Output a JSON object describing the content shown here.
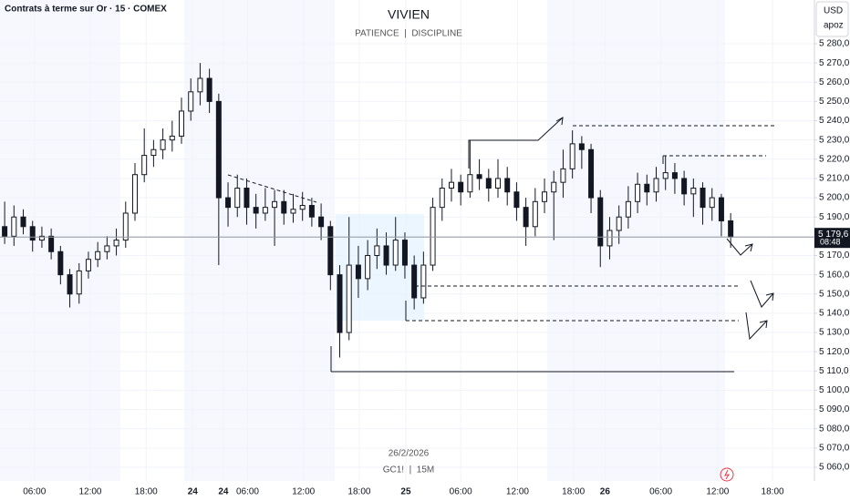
{
  "chart_data": {
    "type": "candlestick",
    "symbol_label": "Contrats à terme sur Or · 15 · COMEX",
    "title": "VIVIEN",
    "subtitle": "PATIENCE  |  DISCIPLINE",
    "currency": "USD",
    "currency_sub": "apoz",
    "watermark_date": "26/2/2026",
    "watermark_symbol": "GC1!  |  15M",
    "countdown": "08:48",
    "last_price": {
      "value": 5179.6,
      "label": "5 179,6"
    },
    "up_color": "#ffffff",
    "down_color": "#131722",
    "grid": true,
    "open": [
      5185,
      5180,
      5190,
      5185,
      5178,
      5180,
      5172,
      5160,
      5150,
      5162,
      5168,
      5172,
      5175,
      5178,
      5192,
      5212,
      5222,
      5225,
      5230,
      5232,
      5245,
      5255,
      5262,
      5250,
      5200,
      5195,
      5205,
      5195,
      5192,
      5195,
      5198,
      5192,
      5194,
      5196,
      5190,
      5185,
      5160,
      5130,
      5165,
      5158,
      5170,
      5175,
      5165,
      5178,
      5165,
      5148,
      5165,
      5195,
      5205,
      5208,
      5203,
      5212,
      5210,
      5205,
      5210,
      5203,
      5195,
      5185,
      5198,
      5203,
      5208,
      5215,
      5228,
      5225,
      5200,
      5175,
      5183,
      5190,
      5198,
      5207,
      5203,
      5210,
      5213,
      5210,
      5202,
      5205,
      5195,
      5200,
      5188
    ],
    "high": [
      5198,
      5196,
      5194,
      5188,
      5185,
      5184,
      5175,
      5163,
      5166,
      5172,
      5177,
      5180,
      5184,
      5198,
      5218,
      5236,
      5230,
      5236,
      5240,
      5252,
      5262,
      5270,
      5267,
      5254,
      5208,
      5212,
      5210,
      5202,
      5205,
      5204,
      5204,
      5202,
      5203,
      5200,
      5197,
      5188,
      5165,
      5190,
      5175,
      5178,
      5184,
      5182,
      5190,
      5182,
      5170,
      5172,
      5200,
      5210,
      5215,
      5212,
      5230,
      5220,
      5215,
      5220,
      5216,
      5208,
      5200,
      5205,
      5210,
      5214,
      5225,
      5235,
      5232,
      5228,
      5204,
      5190,
      5196,
      5206,
      5213,
      5212,
      5216,
      5222,
      5218,
      5214,
      5210,
      5208,
      5205,
      5202,
      5192
    ],
    "low": [
      5176,
      5175,
      5181,
      5172,
      5174,
      5168,
      5155,
      5143,
      5145,
      5158,
      5164,
      5168,
      5170,
      5174,
      5188,
      5208,
      5216,
      5220,
      5224,
      5228,
      5240,
      5248,
      5244,
      5165,
      5185,
      5190,
      5186,
      5184,
      5188,
      5175,
      5186,
      5187,
      5188,
      5185,
      5178,
      5152,
      5117,
      5126,
      5148,
      5152,
      5163,
      5160,
      5162,
      5158,
      5142,
      5145,
      5162,
      5188,
      5198,
      5196,
      5200,
      5204,
      5198,
      5200,
      5196,
      5188,
      5175,
      5180,
      5192,
      5178,
      5200,
      5210,
      5215,
      5192,
      5164,
      5168,
      5176,
      5184,
      5192,
      5196,
      5198,
      5204,
      5202,
      5196,
      5190,
      5186,
      5188,
      5180,
      5174
    ],
    "close": [
      5180,
      5190,
      5185,
      5178,
      5180,
      5172,
      5160,
      5150,
      5162,
      5168,
      5172,
      5175,
      5178,
      5192,
      5212,
      5222,
      5225,
      5230,
      5232,
      5245,
      5255,
      5262,
      5250,
      5200,
      5195,
      5205,
      5195,
      5192,
      5195,
      5198,
      5192,
      5194,
      5196,
      5190,
      5185,
      5160,
      5130,
      5165,
      5158,
      5170,
      5175,
      5165,
      5178,
      5165,
      5148,
      5165,
      5195,
      5205,
      5208,
      5203,
      5212,
      5210,
      5205,
      5210,
      5203,
      5195,
      5185,
      5198,
      5203,
      5208,
      5215,
      5228,
      5225,
      5200,
      5175,
      5183,
      5190,
      5198,
      5207,
      5203,
      5210,
      5213,
      5210,
      5202,
      5205,
      5195,
      5200,
      5188,
      5179.6
    ],
    "xlim": [
      0,
      87.5
    ],
    "xticks": [
      {
        "value": 3.7,
        "label": "06:00"
      },
      {
        "value": 9.7,
        "label": "12:00"
      },
      {
        "value": 15.7,
        "label": "18:00"
      },
      24,
      {
        "value": 26.6,
        "label": "06:00"
      },
      {
        "value": 32.6,
        "label": "12:00"
      },
      {
        "value": 38.6,
        "label": "18:00"
      },
      {
        "value": 49.5,
        "label": "06:00"
      },
      {
        "value": 55.6,
        "label": "12:00"
      },
      {
        "value": 61.6,
        "label": "18:00"
      },
      {
        "value": 71.0,
        "label": "06:00"
      },
      {
        "value": 77.1,
        "label": "12:00"
      },
      {
        "value": 83.0,
        "label": "18:00"
      },
      {
        "value": 20.7,
        "label": "24"
      },
      {
        "value": 43.6,
        "label": "25"
      },
      {
        "value": 65.0,
        "label": "26"
      }
    ],
    "ylim": [
      5052.9,
      5302.7
    ],
    "yticks": [
      {
        "value": 5060,
        "label": "5 060,0"
      },
      {
        "value": 5070,
        "label": "5 070,0"
      },
      {
        "value": 5080,
        "label": "5 080,0"
      },
      {
        "value": 5090,
        "label": "5 090,0"
      },
      {
        "value": 5100,
        "label": "5 100,0"
      },
      {
        "value": 5110,
        "label": "5 110,0"
      },
      {
        "value": 5120,
        "label": "5 120,0"
      },
      {
        "value": 5130,
        "label": "5 130,0"
      },
      {
        "value": 5140,
        "label": "5 140,0"
      },
      {
        "value": 5150,
        "label": "5 150,0"
      },
      {
        "value": 5160,
        "label": "5 160,0"
      },
      {
        "value": 5170,
        "label": "5 170,0"
      },
      {
        "value": 5180,
        "label": "5 180,0"
      },
      {
        "value": 5190,
        "label": "5 190,0"
      },
      {
        "value": 5200,
        "label": "5 200,0"
      },
      {
        "value": 5210,
        "label": "5 210,0"
      },
      {
        "value": 5220,
        "label": "5 220,0"
      },
      {
        "value": 5230,
        "label": "5 230,0"
      },
      {
        "value": 5240,
        "label": "5 240,0"
      },
      {
        "value": 5250,
        "label": "5 250,0"
      },
      {
        "value": 5260,
        "label": "5 260,0"
      },
      {
        "value": 5270,
        "label": "5 270,0"
      },
      {
        "value": 5280,
        "label": "5 280,0"
      }
    ]
  }
}
